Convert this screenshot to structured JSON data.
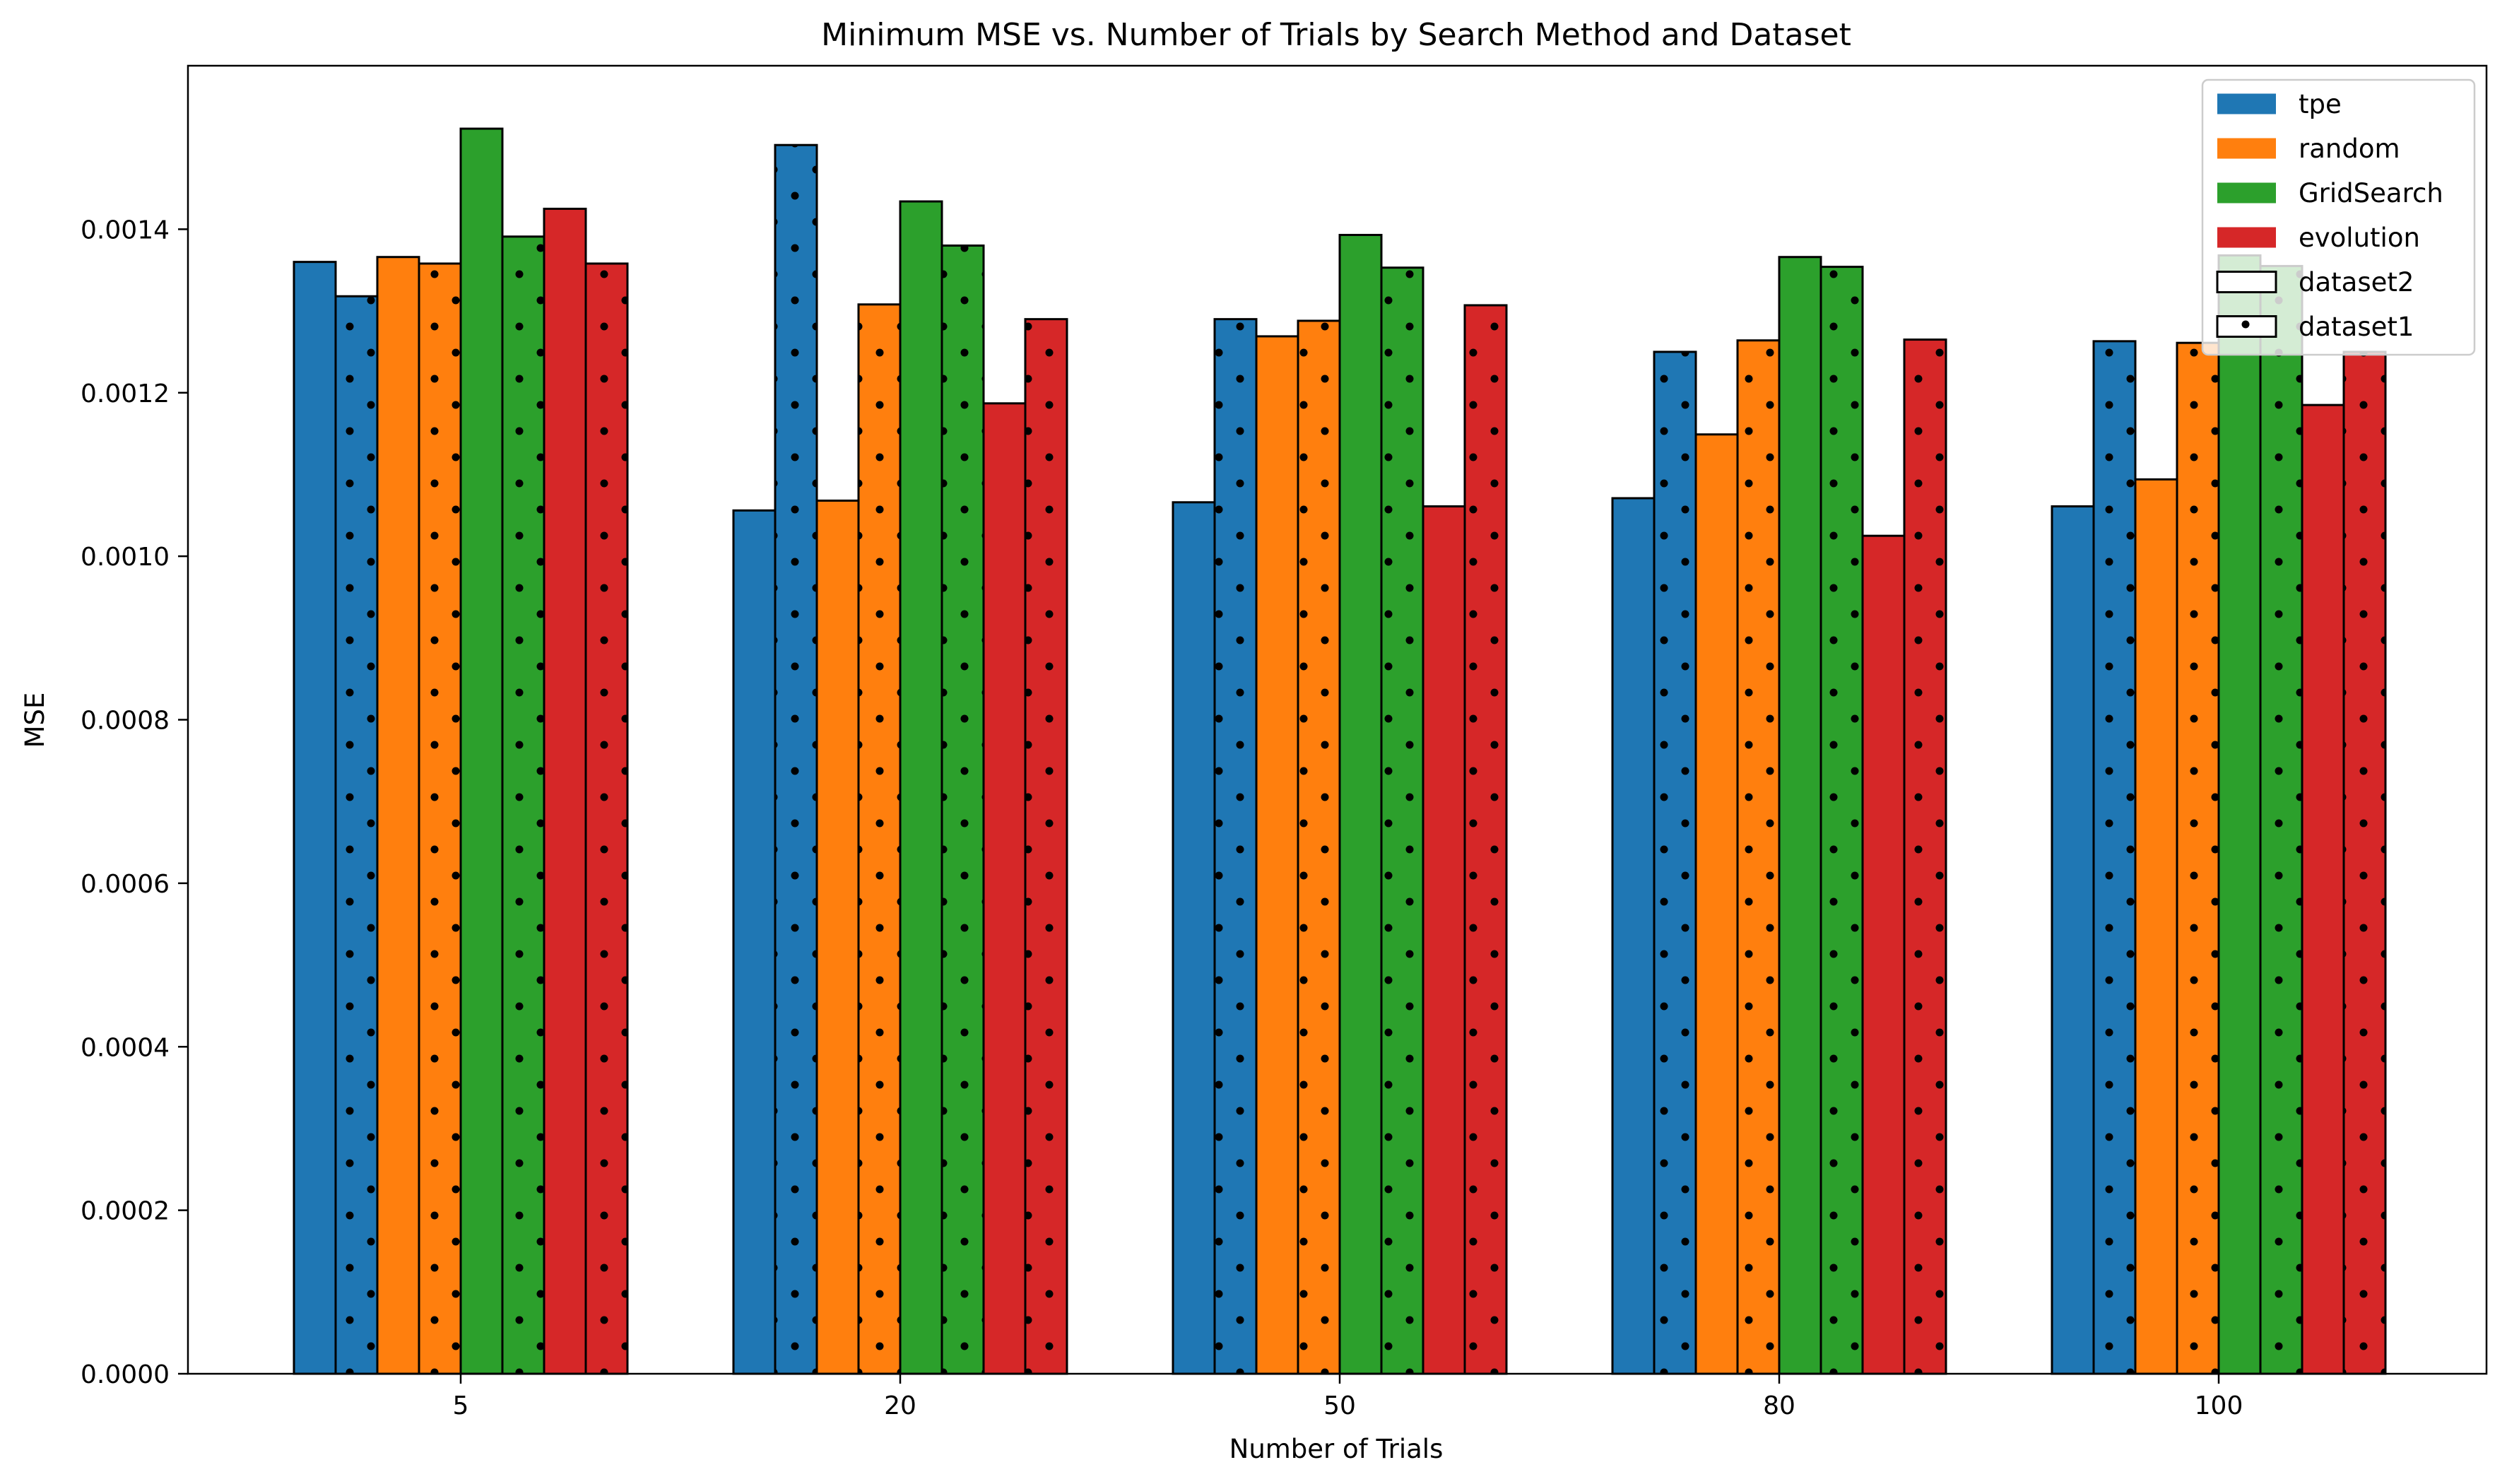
{
  "chart_data": {
    "type": "bar",
    "title": "Minimum MSE vs. Number of Trials by Search Method and Dataset",
    "xlabel": "Number of Trials",
    "ylabel": "MSE",
    "categories": [
      "5",
      "20",
      "50",
      "80",
      "100"
    ],
    "ylim": [
      0,
      0.0016
    ],
    "yticks": [
      "0.0000",
      "0.0002",
      "0.0004",
      "0.0006",
      "0.0008",
      "0.0010",
      "0.0012",
      "0.0014"
    ],
    "ytick_values": [
      0,
      0.0002,
      0.0004,
      0.0006,
      0.0008,
      0.001,
      0.0012,
      0.0014
    ],
    "grid": false,
    "legend_position": "top-right",
    "methods": [
      {
        "name": "tpe",
        "color": "#1f77b4"
      },
      {
        "name": "random",
        "color": "#ff7f0e"
      },
      {
        "name": "GridSearch",
        "color": "#2ca02c"
      },
      {
        "name": "evolution",
        "color": "#d62728"
      }
    ],
    "datasets": [
      {
        "name": "dataset2",
        "pattern": "solid"
      },
      {
        "name": "dataset1",
        "pattern": "dots"
      }
    ],
    "series": [
      {
        "method": "tpe",
        "dataset": "dataset2",
        "values": [
          0.00136,
          0.001056,
          0.001066,
          0.001071,
          0.001061
        ]
      },
      {
        "method": "tpe",
        "dataset": "dataset1",
        "values": [
          0.001318,
          0.001503,
          0.00129,
          0.00125,
          0.001263
        ]
      },
      {
        "method": "random",
        "dataset": "dataset2",
        "values": [
          0.001366,
          0.001068,
          0.001269,
          0.001149,
          0.001094
        ]
      },
      {
        "method": "random",
        "dataset": "dataset1",
        "values": [
          0.001358,
          0.001308,
          0.001288,
          0.001264,
          0.001261
        ]
      },
      {
        "method": "GridSearch",
        "dataset": "dataset2",
        "values": [
          0.001523,
          0.001434,
          0.001393,
          0.001366,
          0.001368
        ]
      },
      {
        "method": "GridSearch",
        "dataset": "dataset1",
        "values": [
          0.001391,
          0.00138,
          0.001353,
          0.001354,
          0.001355
        ]
      },
      {
        "method": "evolution",
        "dataset": "dataset2",
        "values": [
          0.001425,
          0.001187,
          0.001061,
          0.001025,
          0.001185
        ]
      },
      {
        "method": "evolution",
        "dataset": "dataset1",
        "values": [
          0.001358,
          0.00129,
          0.001307,
          0.001265,
          0.00125
        ]
      }
    ]
  }
}
